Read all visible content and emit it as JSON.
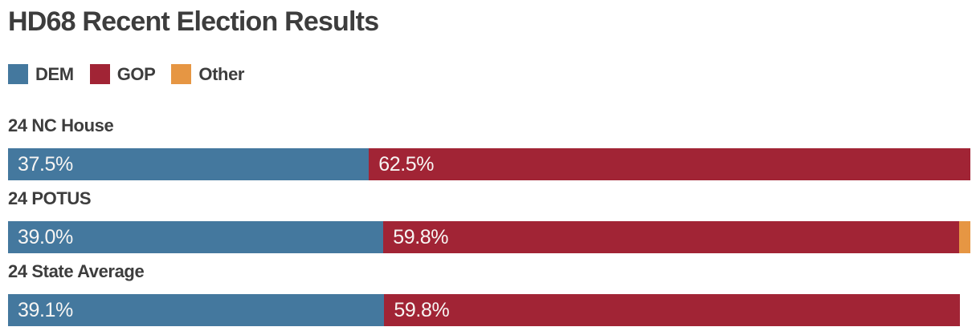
{
  "title": "HD68 Recent Election Results",
  "legend": {
    "items": [
      {
        "label": "DEM",
        "color": "#44789e"
      },
      {
        "label": "GOP",
        "color": "#a12435"
      },
      {
        "label": "Other",
        "color": "#e69643"
      }
    ]
  },
  "rows": [
    {
      "label": "24 NC House",
      "segments": [
        {
          "series": "DEM",
          "pct": 37.5,
          "label": "37.5%"
        },
        {
          "series": "GOP",
          "pct": 62.5,
          "label": "62.5%"
        }
      ]
    },
    {
      "label": "24 POTUS",
      "segments": [
        {
          "series": "DEM",
          "pct": 39.0,
          "label": "39.0%"
        },
        {
          "series": "GOP",
          "pct": 59.8,
          "label": "59.8%"
        },
        {
          "series": "Other",
          "pct": 1.2,
          "label": ""
        }
      ]
    },
    {
      "label": "24 State Average",
      "segments": [
        {
          "series": "DEM",
          "pct": 39.1,
          "label": "39.1%"
        },
        {
          "series": "GOP",
          "pct": 59.8,
          "label": "59.8%"
        }
      ]
    }
  ],
  "chart_data": {
    "type": "bar",
    "orientation": "horizontal-stacked",
    "title": "HD68 Recent Election Results",
    "categories": [
      "24 NC House",
      "24 POTUS",
      "24 State Average"
    ],
    "series": [
      {
        "name": "DEM",
        "color": "#44789e",
        "values": [
          37.5,
          39.0,
          39.1
        ]
      },
      {
        "name": "GOP",
        "color": "#a12435",
        "values": [
          62.5,
          59.8,
          59.8
        ]
      },
      {
        "name": "Other",
        "color": "#e69643",
        "values": [
          0,
          1.2,
          0
        ]
      }
    ],
    "bar_labels": [
      [
        "37.5%",
        "62.5%"
      ],
      [
        "39.0%",
        "59.8%"
      ],
      [
        "39.1%",
        "59.8%"
      ]
    ],
    "xlim": [
      0,
      100
    ],
    "grid": false,
    "legend_position": "top-left",
    "value_label_position": "inside-start"
  },
  "colors": {
    "dem": "#44789e",
    "gop": "#a12435",
    "other": "#e69643",
    "heading_text": "#3d3d3d",
    "bar_label_text": "#f7f5f3",
    "background": "#ffffff"
  }
}
